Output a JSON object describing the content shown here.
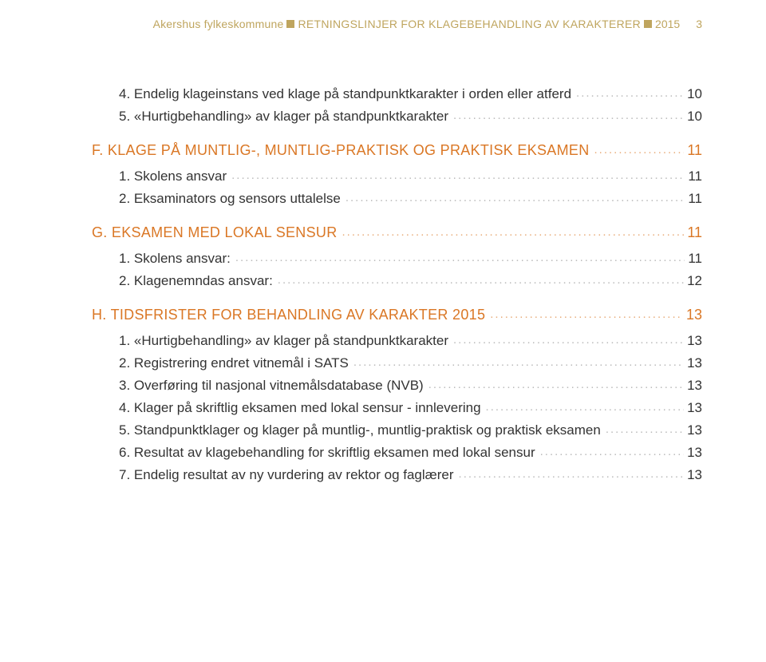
{
  "header": {
    "org": "Akershus fylkeskommune",
    "title": "RETNINGSLINJER FOR KLAGEBEHANDLING AV KARAKTERER",
    "year": "2015",
    "page_number": "3"
  },
  "colors": {
    "accent_gold": "#bfa55e",
    "section_orange": "#da7725",
    "text": "#333333",
    "leader_gray": "#bbbbbb",
    "background": "#ffffff"
  },
  "typography": {
    "body_fontsize": 17,
    "section_fontsize": 18,
    "header_fontsize": 14,
    "font_family": "Helvetica Neue, Arial, sans-serif"
  },
  "toc": [
    {
      "type": "item",
      "indent": 1,
      "label": "4. Endelig klageinstans ved klage på standpunktkarakter i orden eller atferd",
      "page": "10"
    },
    {
      "type": "item",
      "indent": 1,
      "label": "5. «Hurtigbehandling» av klager på standpunktkarakter",
      "page": "10"
    },
    {
      "type": "section",
      "indent": 0,
      "label": "F. KLAGE PÅ MUNTLIG-, MUNTLIG-PRAKTISK OG PRAKTISK EKSAMEN",
      "page": "11"
    },
    {
      "type": "item",
      "indent": 1,
      "label": "1. Skolens ansvar",
      "page": "11"
    },
    {
      "type": "item",
      "indent": 1,
      "label": "2. Eksaminators og sensors uttalelse",
      "page": "11"
    },
    {
      "type": "section",
      "indent": 0,
      "label": "G. EKSAMEN MED LOKAL SENSUR",
      "page": "11"
    },
    {
      "type": "item",
      "indent": 1,
      "label": "1. Skolens ansvar:",
      "page": "11"
    },
    {
      "type": "item",
      "indent": 1,
      "label": "2. Klagenemndas ansvar:",
      "page": "12"
    },
    {
      "type": "section",
      "indent": 0,
      "label": "H. TIDSFRISTER FOR BEHANDLING AV KARAKTER 2015",
      "page": "13"
    },
    {
      "type": "item",
      "indent": 1,
      "label": "1. «Hurtigbehandling» av klager på standpunktkarakter",
      "page": "13"
    },
    {
      "type": "item",
      "indent": 1,
      "label": "2. Registrering endret vitnemål i SATS",
      "page": "13"
    },
    {
      "type": "item",
      "indent": 1,
      "label": "3. Overføring til nasjonal vitnemålsdatabase (NVB)",
      "page": "13"
    },
    {
      "type": "item",
      "indent": 1,
      "label": "4. Klager på skriftlig eksamen med lokal sensur - innlevering",
      "page": "13"
    },
    {
      "type": "item",
      "indent": 1,
      "label": "5. Standpunktklager og klager på muntlig-, muntlig-praktisk og praktisk eksamen",
      "page": "13"
    },
    {
      "type": "item",
      "indent": 1,
      "label": "6. Resultat av klagebehandling for skriftlig eksamen med lokal sensur",
      "page": "13"
    },
    {
      "type": "item",
      "indent": 1,
      "label": "7. Endelig resultat av ny vurdering av rektor og faglærer",
      "page": "13"
    }
  ]
}
